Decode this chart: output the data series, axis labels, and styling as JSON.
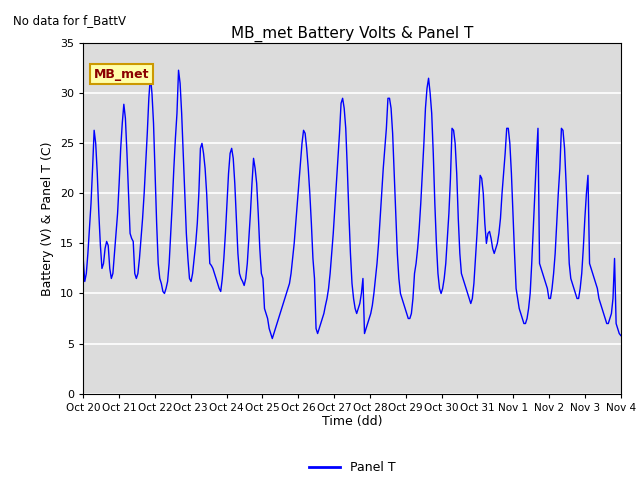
{
  "title": "MB_met Battery Volts & Panel T",
  "ylabel": "Battery (V) & Panel T (C)",
  "xlabel": "Time (dd)",
  "no_data_text": "No data for f_BattV",
  "legend_label": "MB_met",
  "line_label": "Panel T",
  "line_color": "#0000FF",
  "bg_color": "#DCDCDC",
  "ylim": [
    0,
    35
  ],
  "yticks": [
    0,
    5,
    10,
    15,
    20,
    25,
    30,
    35
  ],
  "xtick_labels": [
    "Oct 20",
    "Oct 21",
    "Oct 22",
    "Oct 23",
    "Oct 24",
    "Oct 25",
    "Oct 26",
    "Oct 27",
    "Oct 28",
    "Oct 29",
    "Oct 30",
    "Oct 31",
    "Nov 1",
    "Nov 2",
    "Nov 3",
    "Nov 4"
  ],
  "panel_t": [
    13.5,
    11.2,
    12.0,
    14.0,
    16.5,
    19.0,
    22.5,
    26.3,
    25.0,
    22.0,
    18.0,
    14.8,
    12.5,
    13.0,
    14.5,
    15.2,
    14.8,
    12.5,
    11.5,
    12.0,
    14.0,
    16.0,
    18.0,
    21.0,
    24.5,
    27.0,
    28.9,
    27.5,
    24.0,
    20.0,
    16.0,
    15.5,
    15.2,
    12.0,
    11.5,
    12.0,
    13.5,
    15.5,
    17.5,
    20.0,
    23.0,
    26.0,
    29.5,
    31.7,
    30.0,
    27.0,
    22.0,
    17.0,
    13.0,
    11.5,
    11.0,
    10.2,
    10.0,
    10.5,
    11.2,
    13.0,
    16.0,
    19.0,
    22.5,
    25.5,
    28.0,
    32.3,
    31.0,
    28.0,
    24.0,
    20.0,
    16.0,
    13.5,
    11.5,
    11.2,
    12.0,
    13.5,
    15.0,
    17.0,
    20.0,
    24.5,
    25.0,
    24.0,
    22.5,
    20.0,
    16.5,
    13.0,
    12.8,
    12.5,
    12.0,
    11.5,
    11.0,
    10.5,
    10.2,
    11.5,
    13.5,
    16.0,
    19.0,
    22.0,
    24.0,
    24.5,
    23.5,
    21.0,
    17.5,
    14.0,
    12.0,
    11.5,
    11.2,
    10.8,
    11.5,
    13.0,
    15.5,
    18.0,
    21.0,
    23.5,
    22.5,
    21.0,
    18.0,
    14.5,
    12.0,
    11.5,
    8.5,
    8.0,
    7.5,
    6.5,
    6.0,
    5.5,
    6.0,
    6.5,
    7.0,
    7.5,
    8.0,
    8.5,
    9.0,
    9.5,
    10.0,
    10.5,
    11.0,
    12.0,
    13.5,
    15.0,
    17.0,
    19.0,
    21.0,
    23.0,
    25.0,
    26.3,
    26.0,
    24.5,
    22.5,
    20.0,
    17.0,
    13.5,
    11.5,
    6.5,
    6.0,
    6.5,
    7.0,
    7.5,
    8.0,
    8.8,
    9.5,
    10.5,
    12.0,
    14.0,
    16.0,
    18.5,
    21.0,
    23.5,
    26.0,
    29.0,
    29.5,
    28.5,
    26.5,
    22.5,
    18.0,
    14.0,
    11.0,
    9.5,
    8.5,
    8.0,
    8.5,
    9.0,
    10.0,
    11.5,
    6.0,
    6.5,
    7.0,
    7.5,
    8.0,
    8.8,
    10.0,
    11.5,
    13.0,
    15.0,
    17.5,
    20.0,
    22.5,
    24.5,
    26.5,
    29.5,
    29.5,
    28.5,
    26.0,
    22.0,
    18.0,
    14.0,
    11.5,
    10.0,
    9.5,
    9.0,
    8.5,
    8.0,
    7.5,
    7.5,
    8.0,
    9.5,
    12.0,
    13.0,
    14.5,
    16.5,
    19.0,
    22.0,
    25.0,
    28.5,
    30.5,
    31.5,
    30.0,
    28.0,
    24.0,
    19.0,
    15.0,
    12.0,
    10.5,
    10.0,
    10.5,
    11.5,
    13.0,
    15.5,
    18.0,
    21.5,
    26.5,
    26.3,
    25.0,
    22.0,
    17.5,
    14.0,
    12.0,
    11.5,
    11.0,
    10.5,
    10.0,
    9.5,
    9.0,
    9.5,
    11.0,
    13.5,
    16.0,
    19.0,
    21.8,
    21.5,
    20.0,
    17.0,
    15.0,
    16.0,
    16.2,
    15.5,
    14.5,
    14.0,
    14.5,
    15.0,
    16.0,
    17.5,
    20.0,
    22.0,
    24.0,
    26.5,
    26.5,
    25.0,
    22.0,
    18.0,
    14.0,
    10.5,
    9.5,
    8.5,
    8.0,
    7.5,
    7.0,
    7.0,
    7.5,
    8.5,
    10.0,
    13.0,
    16.5,
    20.0,
    23.5,
    26.5,
    13.0,
    12.5,
    12.0,
    11.5,
    11.0,
    10.5,
    9.5,
    9.5,
    10.5,
    12.0,
    14.0,
    17.0,
    20.0,
    22.5,
    26.5,
    26.3,
    24.5,
    21.0,
    17.0,
    13.0,
    11.5,
    11.0,
    10.5,
    10.0,
    9.5,
    9.5,
    10.5,
    12.0,
    14.5,
    17.5,
    20.0,
    21.8,
    13.0,
    12.5,
    12.0,
    11.5,
    11.0,
    10.5,
    9.5,
    9.0,
    8.5,
    8.0,
    7.5,
    7.0,
    7.0,
    7.5,
    8.0,
    9.5,
    13.5,
    7.0,
    6.5,
    6.0,
    5.8
  ]
}
